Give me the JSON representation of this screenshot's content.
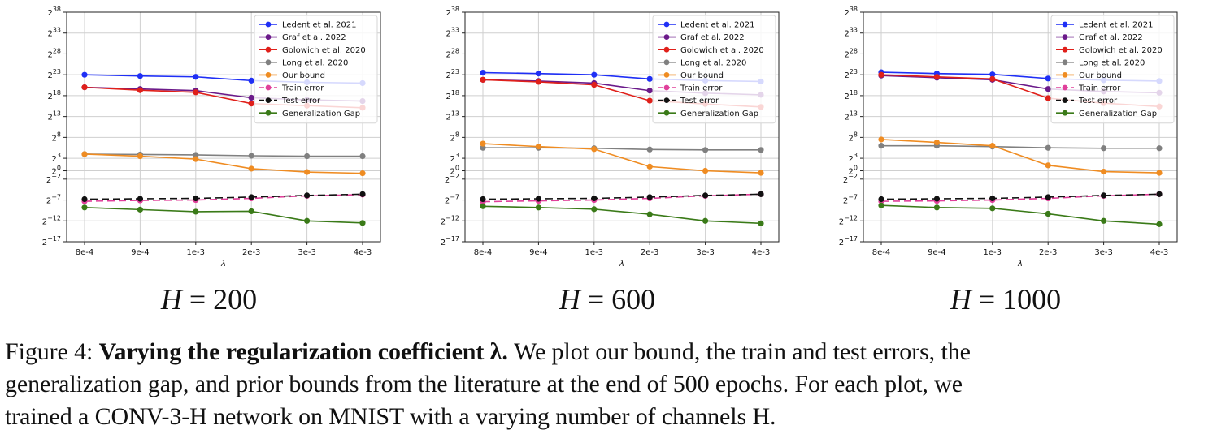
{
  "caption": {
    "label": "Figure 4:",
    "bold": "Varying the regularization coefficient λ.",
    "line1_rest": "We plot our bound, the train and test errors, the",
    "line2": "generalization gap, and prior bounds from the literature at the end of 500 epochs. For each plot, we",
    "line3": "trained a CONV-3-H network on MNIST with a varying number of channels H."
  },
  "colors": {
    "ledent": "#1f2ff5",
    "graf": "#6b1a8a",
    "golowich": "#e0201a",
    "long": "#808080",
    "our": "#ef8c22",
    "train": "#e0409a",
    "test": "#111111",
    "gap": "#3a7a18"
  },
  "chart_data": [
    {
      "type": "line",
      "panel_label": "H = 200",
      "xlabel": "λ",
      "ylabel": "",
      "y_scale": "log2",
      "ylim_exp": [
        -17,
        38
      ],
      "y_tick_labels": [
        "2^-17",
        "2^-12",
        "2^-7",
        "2^-2",
        "2^0",
        "2^3",
        "2^8",
        "2^13",
        "2^18",
        "2^23",
        "2^28",
        "2^33",
        "2^38"
      ],
      "categories": [
        "8e-4",
        "9e-4",
        "1e-3",
        "2e-3",
        "3e-3",
        "4e-3"
      ],
      "grid": true,
      "legend_position": "top-right",
      "series": [
        {
          "name": "Ledent et al. 2021",
          "key": "ledent",
          "log2_values": [
            23.0,
            22.7,
            22.5,
            21.6,
            21.2,
            21.0
          ]
        },
        {
          "name": "Graf et al. 2022",
          "key": "graf",
          "log2_values": [
            20.0,
            19.6,
            19.2,
            17.5,
            17.0,
            16.7
          ]
        },
        {
          "name": "Golowich et al. 2020",
          "key": "golowich",
          "log2_values": [
            20.0,
            19.3,
            18.8,
            16.1,
            15.6,
            15.1
          ]
        },
        {
          "name": "Long et al. 2020",
          "key": "long",
          "log2_values": [
            4.0,
            3.9,
            3.8,
            3.6,
            3.5,
            3.5
          ]
        },
        {
          "name": "Our bound",
          "key": "our",
          "log2_values": [
            4.0,
            3.5,
            2.8,
            0.5,
            -0.3,
            -0.6
          ]
        },
        {
          "name": "Train error",
          "key": "train",
          "log2_values": [
            -7.3,
            -7.1,
            -7.0,
            -6.6,
            -6.0,
            -5.7
          ]
        },
        {
          "name": "Test error",
          "key": "test",
          "log2_values": [
            -6.8,
            -6.7,
            -6.6,
            -6.3,
            -5.9,
            -5.6
          ]
        },
        {
          "name": "Generalization Gap",
          "key": "gap",
          "log2_values": [
            -8.8,
            -9.3,
            -9.8,
            -9.7,
            -12.0,
            -12.5
          ]
        }
      ]
    },
    {
      "type": "line",
      "panel_label": "H = 600",
      "xlabel": "λ",
      "ylabel": "",
      "y_scale": "log2",
      "ylim_exp": [
        -17,
        38
      ],
      "y_tick_labels": [
        "2^-17",
        "2^-12",
        "2^-7",
        "2^-2",
        "2^0",
        "2^3",
        "2^8",
        "2^13",
        "2^18",
        "2^23",
        "2^28",
        "2^33",
        "2^38"
      ],
      "categories": [
        "8e-4",
        "9e-4",
        "1e-3",
        "2e-3",
        "3e-3",
        "4e-3"
      ],
      "grid": true,
      "legend_position": "top-right",
      "series": [
        {
          "name": "Ledent et al. 2021",
          "key": "ledent",
          "log2_values": [
            23.5,
            23.3,
            23.0,
            22.0,
            21.6,
            21.4
          ]
        },
        {
          "name": "Graf et al. 2022",
          "key": "graf",
          "log2_values": [
            21.8,
            21.5,
            21.0,
            19.2,
            18.6,
            18.2
          ]
        },
        {
          "name": "Golowich et al. 2020",
          "key": "golowich",
          "log2_values": [
            21.8,
            21.3,
            20.6,
            16.8,
            16.0,
            15.3
          ]
        },
        {
          "name": "Long et al. 2020",
          "key": "long",
          "log2_values": [
            5.5,
            5.5,
            5.4,
            5.1,
            5.0,
            5.0
          ]
        },
        {
          "name": "Our bound",
          "key": "our",
          "log2_values": [
            6.5,
            5.8,
            5.2,
            1.0,
            0.0,
            -0.5
          ]
        },
        {
          "name": "Train error",
          "key": "train",
          "log2_values": [
            -7.4,
            -7.2,
            -7.0,
            -6.6,
            -6.0,
            -5.6
          ]
        },
        {
          "name": "Test error",
          "key": "test",
          "log2_values": [
            -6.8,
            -6.7,
            -6.6,
            -6.3,
            -5.9,
            -5.6
          ]
        },
        {
          "name": "Generalization Gap",
          "key": "gap",
          "log2_values": [
            -8.5,
            -8.8,
            -9.2,
            -10.4,
            -12.0,
            -12.6
          ]
        }
      ]
    },
    {
      "type": "line",
      "panel_label": "H = 1000",
      "xlabel": "λ",
      "ylabel": "",
      "y_scale": "log2",
      "ylim_exp": [
        -17,
        38
      ],
      "y_tick_labels": [
        "2^-17",
        "2^-12",
        "2^-7",
        "2^-2",
        "2^0",
        "2^3",
        "2^8",
        "2^13",
        "2^18",
        "2^23",
        "2^28",
        "2^33",
        "2^38"
      ],
      "categories": [
        "8e-4",
        "9e-4",
        "1e-3",
        "2e-3",
        "3e-3",
        "4e-3"
      ],
      "grid": true,
      "legend_position": "top-right",
      "series": [
        {
          "name": "Ledent et al. 2021",
          "key": "ledent",
          "log2_values": [
            23.6,
            23.3,
            23.1,
            22.1,
            21.7,
            21.5
          ]
        },
        {
          "name": "Graf et al. 2022",
          "key": "graf",
          "log2_values": [
            22.8,
            22.3,
            21.8,
            19.6,
            19.0,
            18.7
          ]
        },
        {
          "name": "Golowich et al. 2020",
          "key": "golowich",
          "log2_values": [
            23.0,
            22.5,
            22.0,
            17.4,
            16.2,
            15.4
          ]
        },
        {
          "name": "Long et al. 2020",
          "key": "long",
          "log2_values": [
            6.0,
            6.0,
            5.8,
            5.5,
            5.4,
            5.4
          ]
        },
        {
          "name": "Our bound",
          "key": "our",
          "log2_values": [
            7.5,
            6.8,
            6.0,
            1.3,
            -0.2,
            -0.5
          ]
        },
        {
          "name": "Train error",
          "key": "train",
          "log2_values": [
            -7.3,
            -7.2,
            -7.0,
            -6.6,
            -6.0,
            -5.6
          ]
        },
        {
          "name": "Test error",
          "key": "test",
          "log2_values": [
            -6.8,
            -6.7,
            -6.6,
            -6.3,
            -5.9,
            -5.6
          ]
        },
        {
          "name": "Generalization Gap",
          "key": "gap",
          "log2_values": [
            -8.3,
            -8.8,
            -9.0,
            -10.3,
            -12.0,
            -12.8
          ]
        }
      ]
    }
  ]
}
